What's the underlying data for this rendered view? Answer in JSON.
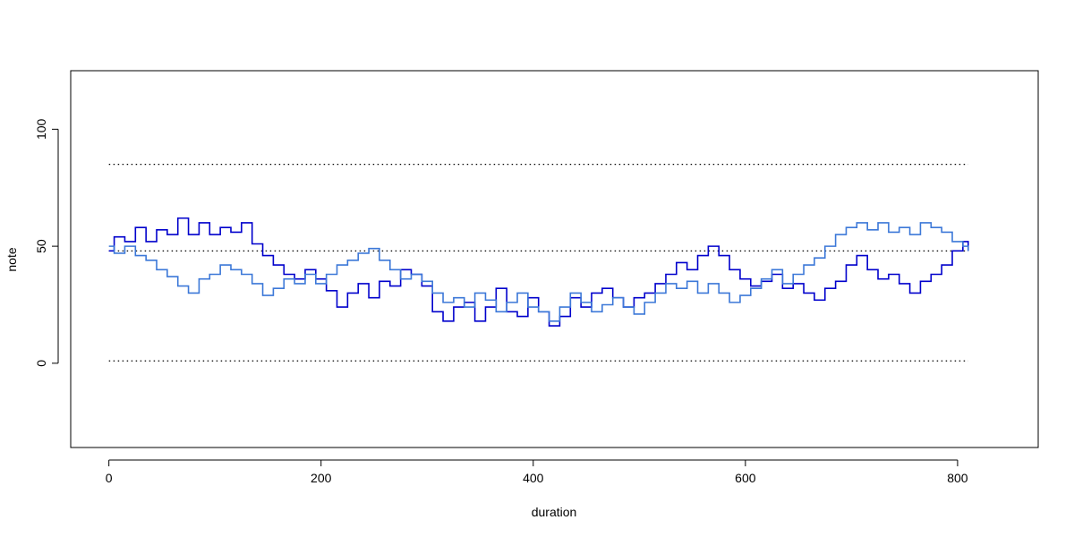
{
  "chart_data": {
    "type": "line",
    "xlabel": "duration",
    "ylabel": "note",
    "xlim": [
      -36,
      876
    ],
    "ylim": [
      -36,
      125
    ],
    "x_ticks": [
      0,
      200,
      400,
      600,
      800
    ],
    "y_ticks": [
      0,
      50,
      100
    ],
    "grid": false,
    "reference_lines": [
      {
        "y": 85,
        "x": [
          0,
          810
        ],
        "style": "dotted"
      },
      {
        "y": 48,
        "x": [
          0,
          810
        ],
        "style": "dotted"
      },
      {
        "y": 1,
        "x": [
          0,
          810
        ],
        "style": "dotted"
      }
    ],
    "series": [
      {
        "color": "#0000cc",
        "style": "step",
        "x": [
          0,
          5,
          15,
          25,
          35,
          45,
          55,
          65,
          75,
          85,
          95,
          105,
          115,
          125,
          135,
          145,
          155,
          165,
          175,
          185,
          195,
          205,
          215,
          225,
          235,
          245,
          255,
          265,
          275,
          285,
          295,
          305,
          315,
          325,
          335,
          345,
          355,
          365,
          375,
          385,
          395,
          405,
          415,
          425,
          435,
          445,
          455,
          465,
          475,
          485,
          495,
          505,
          515,
          525,
          535,
          545,
          555,
          565,
          575,
          585,
          595,
          605,
          615,
          625,
          635,
          645,
          655,
          665,
          675,
          685,
          695,
          705,
          715,
          725,
          735,
          745,
          755,
          765,
          775,
          785,
          795,
          805,
          810
        ],
        "y": [
          48,
          54,
          52,
          58,
          52,
          57,
          55,
          62,
          55,
          60,
          55,
          58,
          56,
          60,
          51,
          46,
          42,
          38,
          36,
          40,
          36,
          31,
          24,
          30,
          34,
          28,
          35,
          33,
          40,
          38,
          33,
          22,
          18,
          24,
          26,
          18,
          24,
          32,
          22,
          20,
          28,
          22,
          16,
          20,
          28,
          24,
          30,
          32,
          28,
          24,
          28,
          30,
          34,
          38,
          43,
          40,
          46,
          50,
          46,
          40,
          36,
          33,
          35,
          38,
          32,
          34,
          30,
          27,
          32,
          35,
          42,
          46,
          40,
          36,
          38,
          34,
          30,
          35,
          38,
          42,
          48,
          52,
          48
        ]
      },
      {
        "color": "#3c78d8",
        "style": "step",
        "x": [
          0,
          5,
          15,
          25,
          35,
          45,
          55,
          65,
          75,
          85,
          95,
          105,
          115,
          125,
          135,
          145,
          155,
          165,
          175,
          185,
          195,
          205,
          215,
          225,
          235,
          245,
          255,
          265,
          275,
          285,
          295,
          305,
          315,
          325,
          335,
          345,
          355,
          365,
          375,
          385,
          395,
          405,
          415,
          425,
          435,
          445,
          455,
          465,
          475,
          485,
          495,
          505,
          515,
          525,
          535,
          545,
          555,
          565,
          575,
          585,
          595,
          605,
          615,
          625,
          635,
          645,
          655,
          665,
          675,
          685,
          695,
          705,
          715,
          725,
          735,
          745,
          755,
          765,
          775,
          785,
          795,
          805,
          810
        ],
        "y": [
          50,
          47,
          50,
          46,
          44,
          40,
          37,
          33,
          30,
          36,
          38,
          42,
          40,
          38,
          34,
          29,
          32,
          36,
          34,
          38,
          34,
          38,
          42,
          44,
          47,
          49,
          44,
          40,
          36,
          38,
          35,
          30,
          26,
          28,
          24,
          30,
          27,
          22,
          26,
          30,
          24,
          22,
          18,
          24,
          30,
          26,
          22,
          25,
          28,
          24,
          21,
          26,
          30,
          34,
          32,
          35,
          30,
          34,
          30,
          26,
          29,
          32,
          36,
          40,
          34,
          38,
          42,
          45,
          50,
          55,
          58,
          60,
          57,
          60,
          56,
          58,
          55,
          60,
          58,
          56,
          52,
          50,
          48
        ]
      }
    ]
  }
}
